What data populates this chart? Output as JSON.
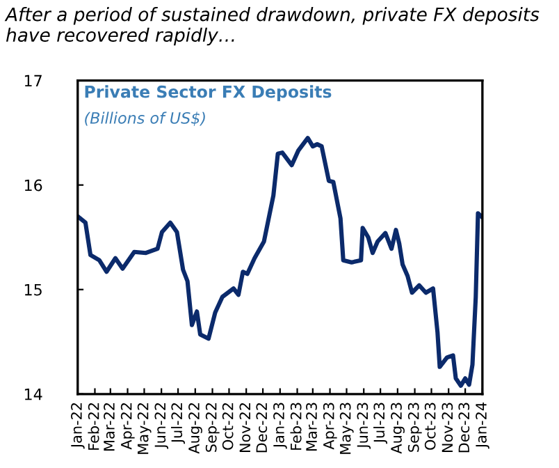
{
  "chart_data": {
    "type": "line",
    "title": "After a period of sustained drawdown, private FX deposits\nhave recovered rapidly…",
    "annotations": [
      "Private Sector FX Deposits",
      "(Billions of US$)"
    ],
    "x": [
      "2022-01-01",
      "2022-01-15",
      "2022-01-24",
      "2022-02-09",
      "2022-02-22",
      "2022-03-10",
      "2022-03-23",
      "2022-04-13",
      "2022-05-04",
      "2022-05-25",
      "2022-06-02",
      "2022-06-17",
      "2022-06-29",
      "2022-07-10",
      "2022-07-18",
      "2022-07-26",
      "2022-08-04",
      "2022-08-10",
      "2022-08-25",
      "2022-09-06",
      "2022-09-19",
      "2022-10-09",
      "2022-10-18",
      "2022-10-26",
      "2022-11-03",
      "2022-11-16",
      "2022-12-03",
      "2022-12-20",
      "2022-12-28",
      "2023-01-05",
      "2023-01-22",
      "2023-02-03",
      "2023-02-20",
      "2023-03-01",
      "2023-03-09",
      "2023-03-17",
      "2023-03-30",
      "2023-04-07",
      "2023-04-20",
      "2023-04-25",
      "2023-05-10",
      "2023-05-27",
      "2023-05-30",
      "2023-06-09",
      "2023-06-17",
      "2023-06-26",
      "2023-07-10",
      "2023-07-21",
      "2023-07-29",
      "2023-08-04",
      "2023-08-10",
      "2023-08-19",
      "2023-08-27",
      "2023-09-09",
      "2023-09-21",
      "2023-10-04",
      "2023-10-12",
      "2023-10-16",
      "2023-10-29",
      "2023-11-09",
      "2023-11-14",
      "2023-11-23",
      "2023-12-01",
      "2023-12-08",
      "2023-12-14",
      "2023-12-20",
      "2023-12-24",
      "2024-01-01"
    ],
    "series": [
      {
        "color": "#0b2a6b",
        "values": [
          15.7,
          15.64,
          15.33,
          15.28,
          15.17,
          15.3,
          15.2,
          15.36,
          15.35,
          15.39,
          15.55,
          15.64,
          15.55,
          15.19,
          15.08,
          14.66,
          14.79,
          14.57,
          14.53,
          14.78,
          14.93,
          15.01,
          14.95,
          15.17,
          15.15,
          15.3,
          15.46,
          15.9,
          16.3,
          16.31,
          16.19,
          16.33,
          16.45,
          16.37,
          16.39,
          16.37,
          16.04,
          16.03,
          15.68,
          15.28,
          15.26,
          15.28,
          15.59,
          15.5,
          15.35,
          15.46,
          15.54,
          15.39,
          15.57,
          15.44,
          15.24,
          15.13,
          14.97,
          15.04,
          14.97,
          15.01,
          14.59,
          14.26,
          14.35,
          14.37,
          14.15,
          14.08,
          14.15,
          14.09,
          14.28,
          14.93,
          15.73,
          15.69
        ]
      }
    ],
    "xlim": [
      "2022-01-01",
      "2024-01-01"
    ],
    "xticks": [
      {
        "value": "2022-01-01",
        "label": "Jan-22"
      },
      {
        "value": "2022-02-01",
        "label": "Feb-22"
      },
      {
        "value": "2022-03-01",
        "label": "Mar-22"
      },
      {
        "value": "2022-04-01",
        "label": "Apr-22"
      },
      {
        "value": "2022-05-01",
        "label": "May-22"
      },
      {
        "value": "2022-06-01",
        "label": "Jun-22"
      },
      {
        "value": "2022-07-01",
        "label": "Jul-22"
      },
      {
        "value": "2022-08-01",
        "label": "Aug-22"
      },
      {
        "value": "2022-09-01",
        "label": "Sep-22"
      },
      {
        "value": "2022-10-01",
        "label": "Oct-22"
      },
      {
        "value": "2022-11-01",
        "label": "Nov-22"
      },
      {
        "value": "2022-12-01",
        "label": "Dec-22"
      },
      {
        "value": "2023-01-01",
        "label": "Jan-23"
      },
      {
        "value": "2023-02-01",
        "label": "Feb-23"
      },
      {
        "value": "2023-03-01",
        "label": "Mar-23"
      },
      {
        "value": "2023-04-01",
        "label": "Apr-23"
      },
      {
        "value": "2023-05-01",
        "label": "May-23"
      },
      {
        "value": "2023-06-01",
        "label": "Jun-23"
      },
      {
        "value": "2023-07-01",
        "label": "Jul-23"
      },
      {
        "value": "2023-08-01",
        "label": "Aug-23"
      },
      {
        "value": "2023-09-01",
        "label": "Sep-23"
      },
      {
        "value": "2023-10-01",
        "label": "Oct-23"
      },
      {
        "value": "2023-11-01",
        "label": "Nov-23"
      },
      {
        "value": "2023-12-01",
        "label": "Dec-23"
      },
      {
        "value": "2024-01-01",
        "label": "Jan-24"
      }
    ],
    "ylim": [
      14,
      17
    ],
    "yticks": [
      14,
      15,
      16,
      17
    ],
    "grid": false,
    "legend": false
  }
}
